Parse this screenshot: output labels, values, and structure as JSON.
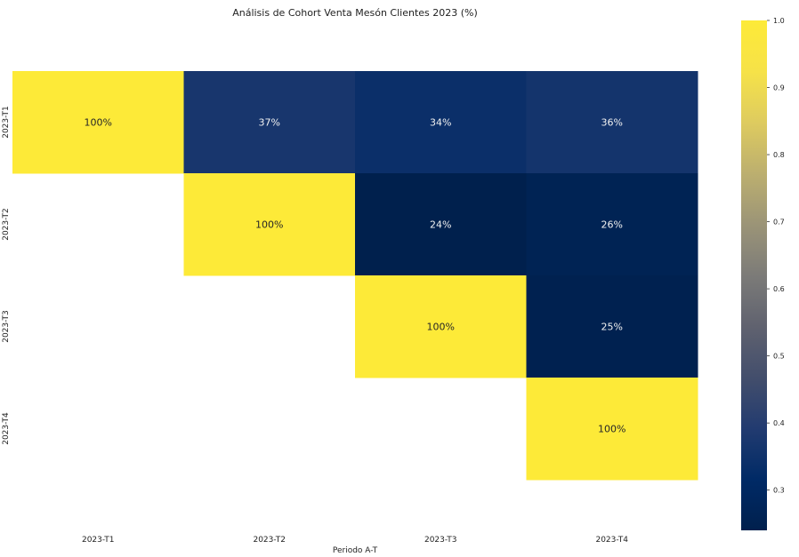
{
  "chart_data": {
    "type": "heatmap",
    "title": "Análisis de Cohort Venta Mesón Clientes 2023 (%)",
    "xlabel": "Periodo A-T",
    "ylabel": "",
    "x_categories": [
      "2023-T1",
      "2023-T2",
      "2023-T3",
      "2023-T4"
    ],
    "y_categories": [
      "2023-T1",
      "2023-T2",
      "2023-T3",
      "2023-T4"
    ],
    "values": [
      [
        1.0,
        0.37,
        0.34,
        0.36
      ],
      [
        null,
        1.0,
        0.24,
        0.26
      ],
      [
        null,
        null,
        1.0,
        0.25
      ],
      [
        null,
        null,
        null,
        1.0
      ]
    ],
    "cell_labels": [
      [
        "100%",
        "37%",
        "34%",
        "36%"
      ],
      [
        "",
        "100%",
        "24%",
        "26%"
      ],
      [
        "",
        "",
        "100%",
        "25%"
      ],
      [
        "",
        "",
        "",
        "100%"
      ]
    ],
    "colormap": "cividis",
    "colorbar": {
      "range": [
        0.24,
        1.0
      ],
      "ticks": [
        0.3,
        0.4,
        0.5,
        0.6,
        0.7,
        0.8,
        0.9,
        1.0
      ],
      "tick_labels": [
        "0.3",
        "0.4",
        "0.5",
        "0.6",
        "0.7",
        "0.8",
        "0.9",
        "1.0"
      ]
    },
    "grid": false,
    "legend_placement": "right"
  }
}
